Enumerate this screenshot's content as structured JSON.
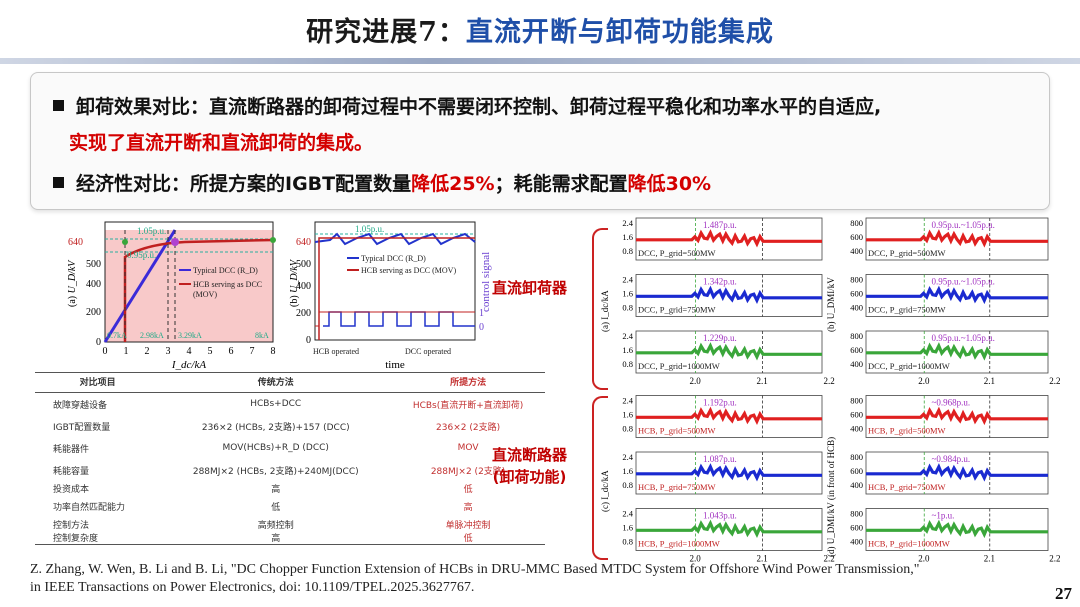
{
  "slide": {
    "title_a": "研究进展7：",
    "title_b": "直流开断与卸荷功能集成",
    "page_number": "27"
  },
  "bullets": {
    "b1_lead": "卸荷效果对比：直流断路器的卸荷过程中不需要闭环控制、卸荷过程平稳化和功率水平的自适应,",
    "b1_red": "实现了直流开断和直流卸荷的集成。",
    "b2_lead": "经济性对比：所提方案的IGBT配置数量",
    "b2_red1": "降低25%",
    "b2_mid": "；耗能需求配置",
    "b2_red2": "降低30%"
  },
  "plot_a": {
    "panel": "(a)",
    "ylabel": "U_D/kV",
    "xlabel": "I_dc/kA",
    "x_ticks": [
      "0",
      "1",
      "2",
      "3",
      "4",
      "5",
      "6",
      "7",
      "8"
    ],
    "y_ticks": [
      "0",
      "200",
      "400",
      "500",
      "640"
    ],
    "ann_1": "1.05p.u.",
    "ann_2": "0.95p.u.",
    "ann_3": "0.7kA",
    "ann_4": "2.98kA",
    "ann_5": "3.29kA",
    "ann_6": "8kA",
    "legend_1": "Typical DCC (R_D)",
    "legend_2": "HCB serving as DCC",
    "legend_3": "(MOV)"
  },
  "plot_b": {
    "panel": "(b)",
    "ylabel": "U_D/kV",
    "xlabel": "time",
    "y2label": "control signal",
    "y_ticks": [
      "0",
      "200",
      "400",
      "500",
      "640"
    ],
    "y2_ticks": [
      "0",
      "1"
    ],
    "ann_1": "1.05p.u.",
    "legend_1": "Typical DCC (R_D)",
    "legend_2": "HCB serving as DCC (MOV)",
    "ann_hcb": "HCB operated",
    "ann_dcc": "DCC operated"
  },
  "comparison_table": {
    "headers": [
      "对比项目",
      "传统方法",
      "所提方法"
    ],
    "rows": [
      [
        "故障穿越设备",
        "HCBs+DCC",
        "HCBs(直流开断+直流卸荷)"
      ],
      [
        "IGBT配置数量",
        "236×2 (HCBs, 2支路)+157 (DCC)",
        "236×2 (2支路)"
      ],
      [
        "耗能器件",
        "MOV(HCBs)+R_D (DCC)",
        "MOV"
      ],
      [
        "耗能容量",
        "288MJ×2 (HCBs, 2支路)+240MJ(DCC)",
        "288MJ×2 (2支路)"
      ],
      [
        "投资成本",
        "高",
        "低"
      ],
      [
        "功率自然匹配能力",
        "低",
        "高"
      ],
      [
        "控制方法",
        "高频控制",
        "单脉冲控制"
      ],
      [
        "控制复杂度",
        "高",
        "低"
      ]
    ]
  },
  "labels": {
    "group1": "直流卸荷器",
    "group2a": "直流断路器",
    "group2b": "(卸荷功能)"
  },
  "waveforms_c": {
    "panel_top": "(a) I_dc/kA",
    "panel_bottom": "(c) I_dc/kA",
    "y_ticks": [
      "2.4",
      "1.6",
      "0.8"
    ],
    "x_ticks": [
      "2.0",
      "2.1",
      "2.2"
    ],
    "rows": [
      {
        "ann": "1.487p.u.",
        "legend": "DCC, P_grid=500MW",
        "color": "#e02020"
      },
      {
        "ann": "1.342p.u.",
        "legend": "DCC, P_grid=750MW",
        "color": "#1a2ad0"
      },
      {
        "ann": "1.229p.u.",
        "legend": "DCC, P_grid=1000MW",
        "color": "#3aa63a"
      },
      {
        "ann": "1.192p.u.",
        "legend": "HCB, P_grid=500MW",
        "color": "#e02020"
      },
      {
        "ann": "1.087p.u.",
        "legend": "HCB, P_grid=750MW",
        "color": "#1a2ad0"
      },
      {
        "ann": "1.043p.u.",
        "legend": "HCB, P_grid=1000MW",
        "color": "#3aa63a"
      }
    ]
  },
  "waveforms_d": {
    "panel_top": "(b) U_DMI/kV",
    "panel_bottom": "(d) U_DMI/kV (in front of HCB)",
    "y_ticks": [
      "800",
      "600",
      "400"
    ],
    "x_ticks": [
      "2.0",
      "2.1",
      "2.2"
    ],
    "rows": [
      {
        "ann": "0.95p.u.~1.05p.u.",
        "legend": "DCC, P_grid=500MW",
        "color": "#e02020"
      },
      {
        "ann": "0.95p.u.~1.05p.u.",
        "legend": "DCC, P_grid=750MW",
        "color": "#1a2ad0"
      },
      {
        "ann": "0.95p.u.~1.05p.u.",
        "legend": "DCC, P_grid=1000MW",
        "color": "#3aa63a"
      },
      {
        "ann": "~0.968p.u.",
        "legend": "HCB, P_grid=500MW",
        "color": "#e02020"
      },
      {
        "ann": "~0.984p.u.",
        "legend": "HCB, P_grid=750MW",
        "color": "#1a2ad0"
      },
      {
        "ann": "~1p.u.",
        "legend": "HCB, P_grid=1000MW",
        "color": "#3aa63a"
      }
    ]
  },
  "citation": {
    "line1": "Z. Zhang, W. Wen, B. Li and B. Li, \"DC Chopper Function Extension of HCBs in DRU-MMC Based MTDC System for Offshore Wind Power Transmission,\"",
    "line2": "in IEEE Transactions on Power Electronics, doi: 10.1109/TPEL.2025.3627767."
  }
}
